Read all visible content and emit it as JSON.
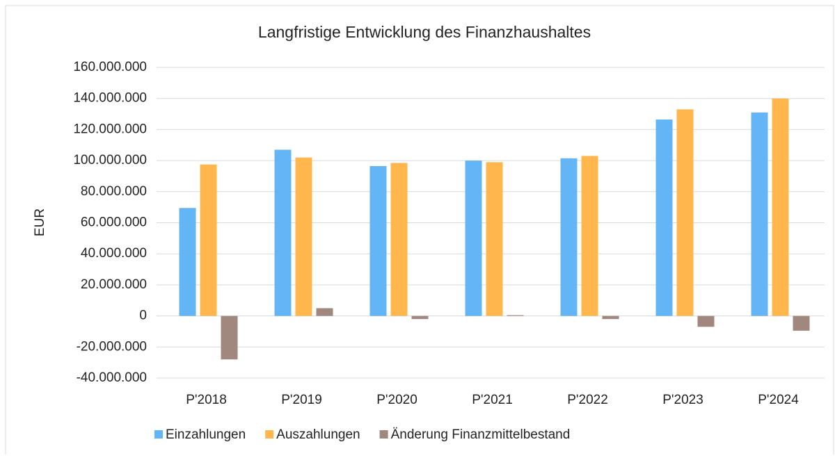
{
  "chart_data": {
    "type": "bar",
    "title": "Langfristige Entwicklung des Finanzhaushaltes",
    "y_label": "EUR",
    "categories": [
      "P'2018",
      "P'2019",
      "P'2020",
      "P'2021",
      "P'2022",
      "P'2023",
      "P'2024"
    ],
    "series": [
      {
        "name": "Einzahlungen",
        "color": "#64b5f6",
        "values": [
          69500000,
          107000000,
          96500000,
          100000000,
          101500000,
          126500000,
          131000000
        ]
      },
      {
        "name": "Auszahlungen",
        "color": "#ffb74d",
        "values": [
          97500000,
          102000000,
          98500000,
          99000000,
          103000000,
          133000000,
          140000000
        ]
      },
      {
        "name": "Änderung Finanzmittelbestand",
        "color": "#a1887f",
        "values": [
          -28000000,
          5000000,
          -2000000,
          500000,
          -2000000,
          -7000000,
          -9500000
        ]
      }
    ],
    "ylim": [
      -40000000,
      160000000
    ],
    "yticks": [
      {
        "value": -40000000,
        "label": "-40.000.000"
      },
      {
        "value": -20000000,
        "label": "-20.000.000"
      },
      0,
      {
        "value": 20000000,
        "label": "20.000.000"
      },
      {
        "value": 40000000,
        "label": "40.000.000"
      },
      {
        "value": 60000000,
        "label": "60.000.000"
      },
      {
        "value": 80000000,
        "label": "80.000.000"
      },
      {
        "value": 100000000,
        "label": "100.000.000"
      },
      {
        "value": 120000000,
        "label": "120.000.000"
      },
      {
        "value": 140000000,
        "label": "140.000.000"
      },
      {
        "value": 160000000,
        "label": "160.000.000"
      }
    ],
    "grid": true,
    "legend": "bottom"
  }
}
